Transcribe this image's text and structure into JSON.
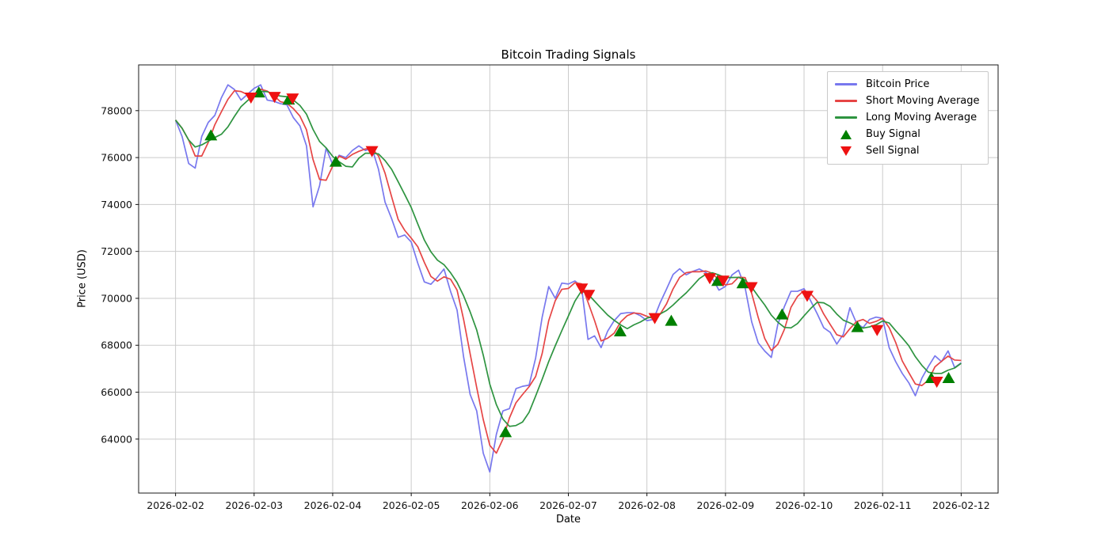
{
  "chart_data": {
    "type": "line",
    "title": "Bitcoin Trading Signals",
    "xlabel": "Date",
    "ylabel": "Price (USD)",
    "x_tick_labels": [
      "2026-02-02",
      "2026-02-03",
      "2026-02-04",
      "2026-02-05",
      "2026-02-06",
      "2026-02-07",
      "2026-02-08",
      "2026-02-09",
      "2026-02-10",
      "2026-02-11",
      "2026-02-12"
    ],
    "y_tick_values": [
      64000,
      66000,
      68000,
      70000,
      72000,
      74000,
      76000,
      78000
    ],
    "x_range_days": [
      -0.47,
      10.47
    ],
    "y_range": [
      61700,
      79950
    ],
    "grid": true,
    "grid_color": "#cbcbcb",
    "legend_position": "upper right",
    "sampling": {
      "start_date": "2026-02-02",
      "interval_hours": 2,
      "points": 121
    },
    "series": [
      {
        "name": "Bitcoin Price",
        "color": "#7878ee",
        "style": "line",
        "values": [
          77600,
          76900,
          75750,
          75550,
          76900,
          77500,
          77800,
          78550,
          79100,
          78900,
          78450,
          78700,
          78950,
          79100,
          78450,
          78400,
          78300,
          78250,
          77700,
          77350,
          76500,
          73900,
          74800,
          76400,
          75700,
          76100,
          76000,
          76300,
          76500,
          76300,
          76400,
          75500,
          74100,
          73400,
          72600,
          72700,
          72400,
          71500,
          70700,
          70600,
          70900,
          71250,
          70300,
          69500,
          67500,
          65900,
          65200,
          63400,
          62600,
          64200,
          65200,
          65300,
          66150,
          66250,
          66300,
          67450,
          69200,
          70500,
          70000,
          70650,
          70610,
          70740,
          70510,
          68250,
          68400,
          67900,
          68600,
          69050,
          69350,
          69390,
          69390,
          69260,
          69050,
          69100,
          69800,
          70400,
          71020,
          71260,
          71000,
          71150,
          71250,
          71100,
          70850,
          70350,
          70510,
          71000,
          71200,
          70450,
          69000,
          68100,
          67750,
          67480,
          68900,
          69650,
          70300,
          70300,
          70410,
          69900,
          69350,
          68750,
          68550,
          68050,
          68470,
          69600,
          68950,
          68750,
          69100,
          69200,
          69150,
          67900,
          67300,
          66800,
          66400,
          65850,
          66600,
          67100,
          67550,
          67300,
          67760,
          67050,
          67250
        ]
      },
      {
        "name": "Short Moving Average",
        "color": "#e64545",
        "style": "line",
        "derived": "rolling_mean_of_bitcoin_price",
        "window_samples": 3
      },
      {
        "name": "Long Moving Average",
        "color": "#2e9440",
        "style": "line",
        "derived": "rolling_mean_of_bitcoin_price",
        "window_samples": 7
      }
    ],
    "signals": {
      "buy": {
        "label": "Buy Signal",
        "color": "#008000",
        "marker": "triangle-up",
        "points": [
          [
            0.45,
            76950
          ],
          [
            1.06,
            78780
          ],
          [
            1.44,
            78480
          ],
          [
            2.04,
            75830
          ],
          [
            4.2,
            64300
          ],
          [
            5.66,
            68600
          ],
          [
            6.31,
            69050
          ],
          [
            6.9,
            70750
          ],
          [
            7.22,
            70650
          ],
          [
            7.72,
            69320
          ],
          [
            8.68,
            68780
          ],
          [
            9.62,
            66610
          ],
          [
            9.84,
            66610
          ]
        ]
      },
      "sell": {
        "label": "Sell Signal",
        "color": "#ee1111",
        "marker": "triangle-down",
        "points": [
          [
            0.96,
            78550
          ],
          [
            1.26,
            78580
          ],
          [
            1.49,
            78510
          ],
          [
            2.5,
            76270
          ],
          [
            5.17,
            70410
          ],
          [
            5.26,
            70140
          ],
          [
            6.1,
            69150
          ],
          [
            6.8,
            70850
          ],
          [
            6.97,
            70750
          ],
          [
            7.33,
            70470
          ],
          [
            8.04,
            70100
          ],
          [
            8.93,
            68640
          ],
          [
            9.69,
            66440
          ]
        ]
      }
    }
  }
}
